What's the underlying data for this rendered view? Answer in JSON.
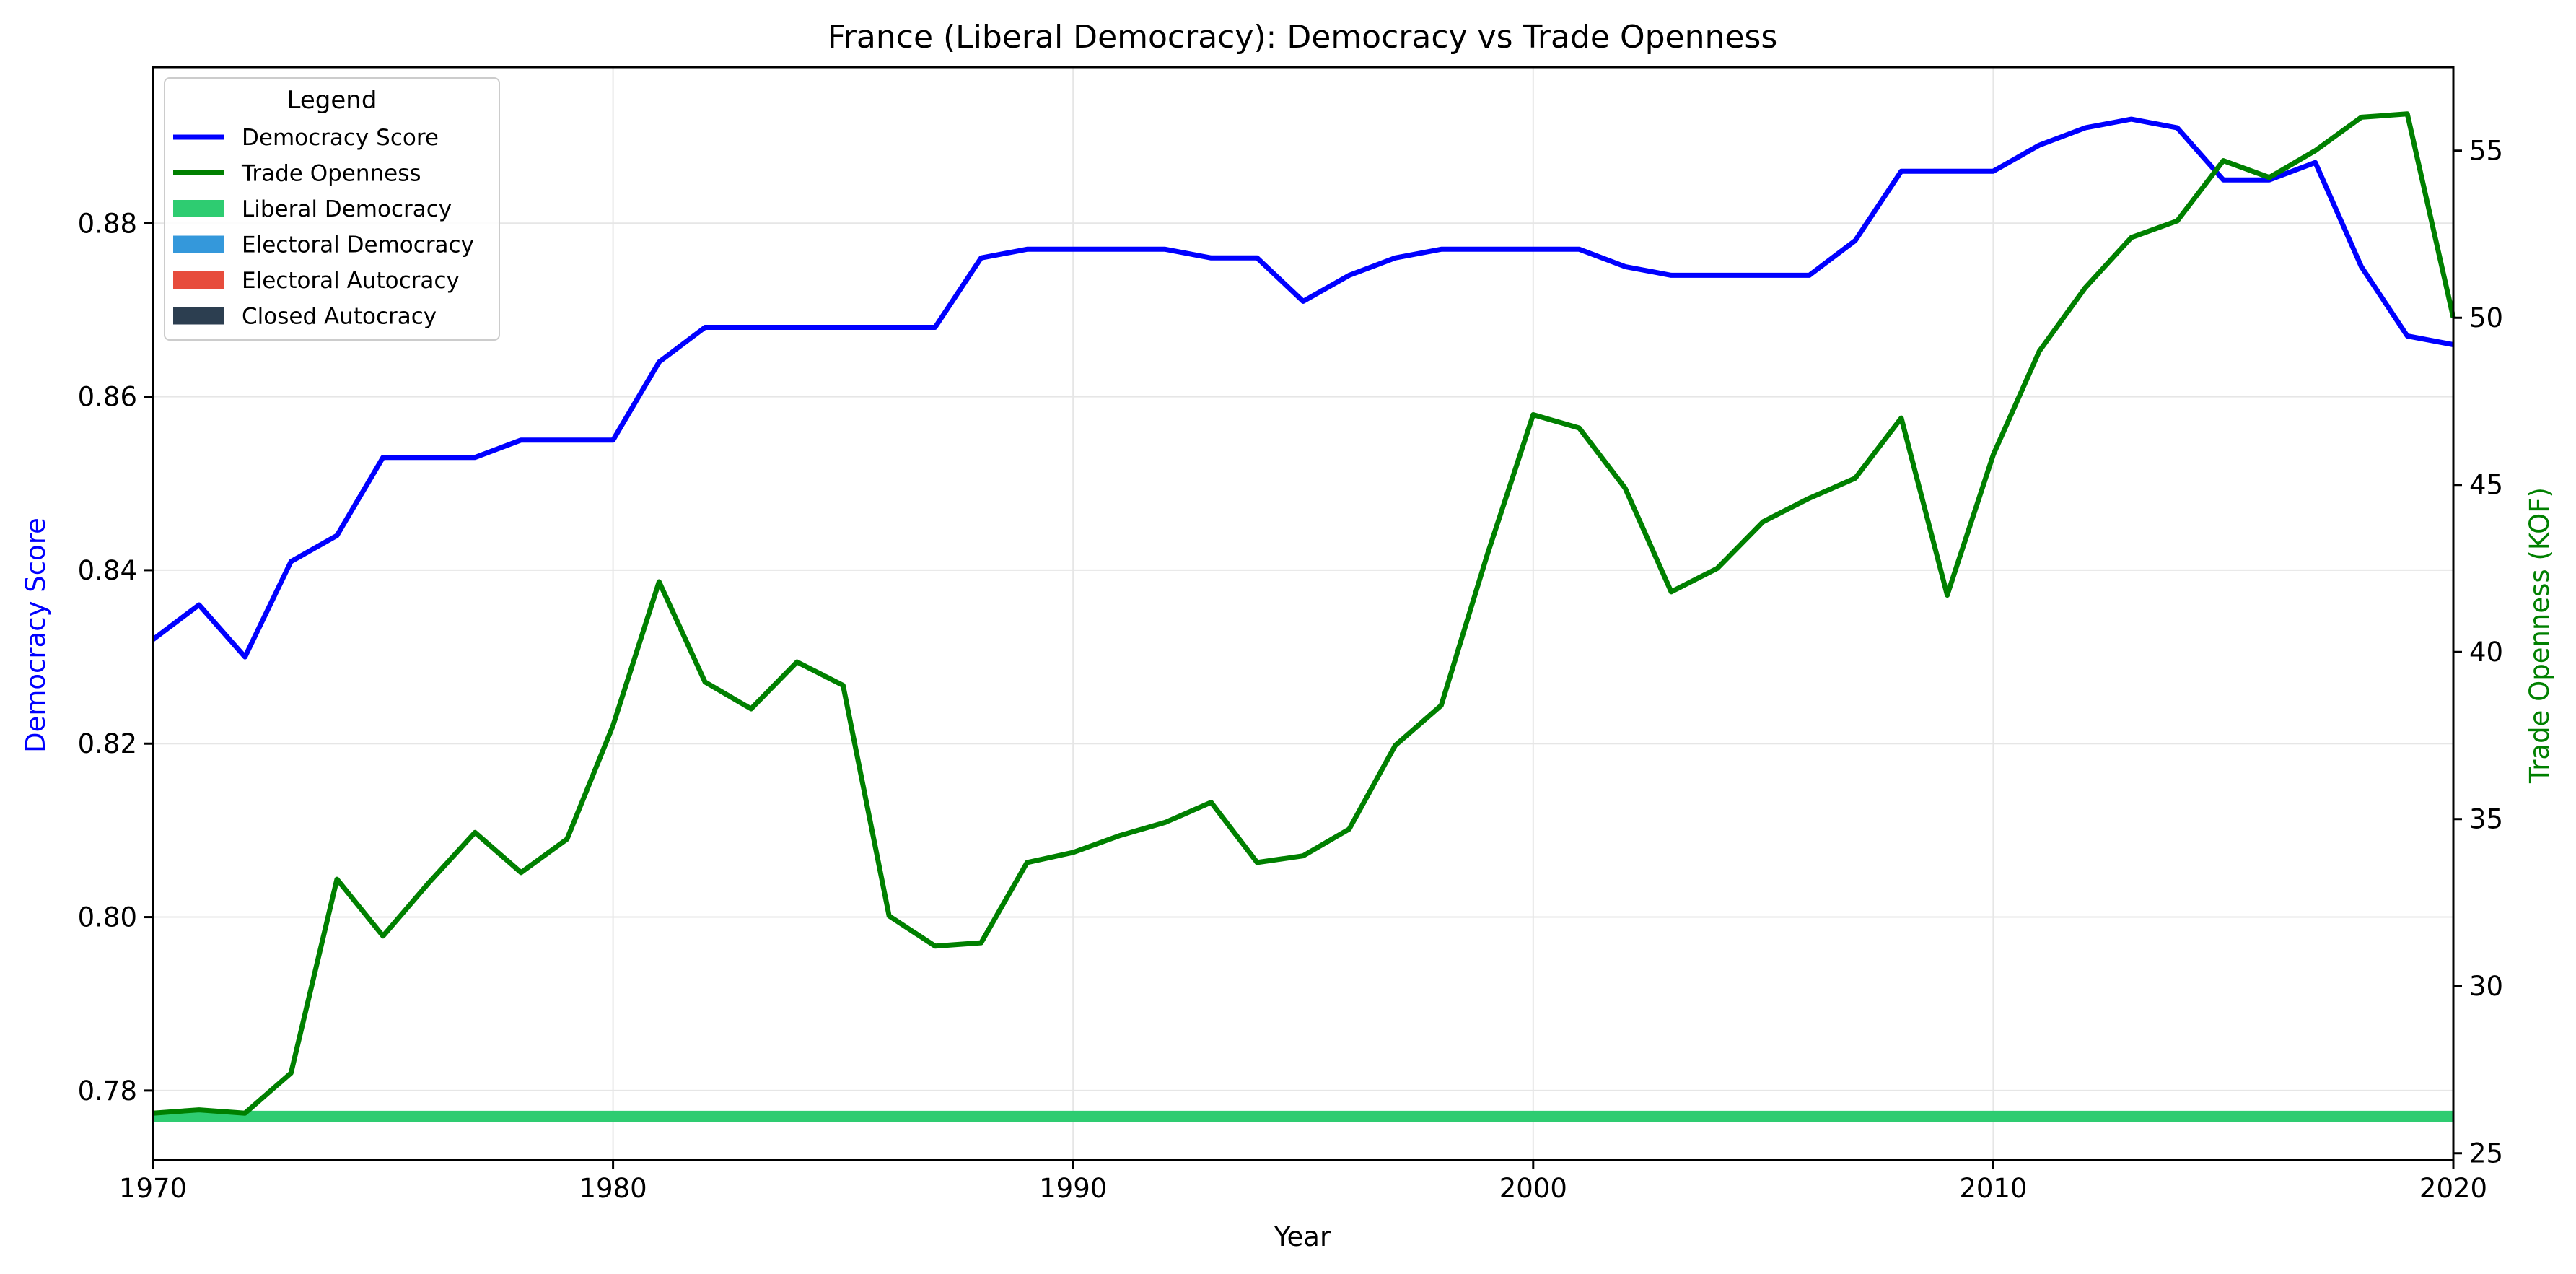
{
  "chart_data": {
    "type": "line",
    "title": "France (Liberal Democracy): Democracy vs Trade Openness",
    "xlabel": "Year",
    "ylabel_left": "Democracy Score",
    "ylabel_right": "Trade Openness (KOF)",
    "xlim": [
      1970,
      2020
    ],
    "ylim_left": [
      0.772,
      0.898
    ],
    "ylim_right": [
      24.8,
      57.5
    ],
    "xticks": [
      1970,
      1980,
      1990,
      2000,
      2010,
      2020
    ],
    "yticks_left": [
      "0.78",
      "0.80",
      "0.82",
      "0.84",
      "0.86",
      "0.88"
    ],
    "yticks_right": [
      "25",
      "30",
      "35",
      "40",
      "45",
      "50",
      "55"
    ],
    "grid": true,
    "legend": {
      "title": "Legend",
      "position": "top-left",
      "entries": [
        {
          "label": "Democracy Score",
          "kind": "line",
          "color": "#0000ff"
        },
        {
          "label": "Trade Openness",
          "kind": "line",
          "color": "#008000"
        },
        {
          "label": "Liberal Democracy",
          "kind": "patch",
          "color": "#2ecc71"
        },
        {
          "label": "Electoral Democracy",
          "kind": "patch",
          "color": "#3498db"
        },
        {
          "label": "Electoral Autocracy",
          "kind": "patch",
          "color": "#e74c3c"
        },
        {
          "label": "Closed Autocracy",
          "kind": "patch",
          "color": "#2c3e50"
        }
      ]
    },
    "regime_band": {
      "label": "Liberal Democracy",
      "color": "#2ecc71",
      "from": 1970,
      "to": 2020
    },
    "x": [
      1970,
      1971,
      1972,
      1973,
      1974,
      1975,
      1976,
      1977,
      1978,
      1979,
      1980,
      1981,
      1982,
      1983,
      1984,
      1985,
      1986,
      1987,
      1988,
      1989,
      1990,
      1991,
      1992,
      1993,
      1994,
      1995,
      1996,
      1997,
      1998,
      1999,
      2000,
      2001,
      2002,
      2003,
      2004,
      2005,
      2006,
      2007,
      2008,
      2009,
      2010,
      2011,
      2012,
      2013,
      2014,
      2015,
      2016,
      2017,
      2018,
      2019,
      2020
    ],
    "series": [
      {
        "name": "Democracy Score",
        "axis": "left",
        "color": "#0000ff",
        "values": [
          0.832,
          0.836,
          0.83,
          0.841,
          0.844,
          0.853,
          0.853,
          0.853,
          0.855,
          0.855,
          0.855,
          0.864,
          0.868,
          0.868,
          0.868,
          0.868,
          0.868,
          0.868,
          0.876,
          0.877,
          0.877,
          0.877,
          0.877,
          0.876,
          0.876,
          0.871,
          0.874,
          0.876,
          0.877,
          0.877,
          0.877,
          0.877,
          0.875,
          0.874,
          0.874,
          0.874,
          0.874,
          0.878,
          0.886,
          0.886,
          0.886,
          0.889,
          0.891,
          0.892,
          0.891,
          0.885,
          0.885,
          0.887,
          0.875,
          0.867,
          0.866
        ]
      },
      {
        "name": "Trade Openness",
        "axis": "right",
        "color": "#008000",
        "values": [
          26.2,
          26.3,
          26.2,
          27.4,
          33.2,
          31.5,
          33.1,
          34.6,
          33.4,
          34.4,
          37.8,
          42.1,
          39.1,
          38.3,
          39.7,
          39.0,
          32.1,
          31.2,
          31.3,
          33.7,
          34.0,
          34.5,
          34.9,
          35.5,
          33.7,
          33.9,
          34.7,
          37.2,
          38.4,
          42.9,
          47.1,
          46.7,
          44.9,
          41.8,
          42.5,
          43.9,
          44.6,
          45.2,
          47.0,
          41.7,
          45.9,
          49.0,
          50.9,
          52.4,
          52.9,
          54.7,
          54.2,
          55.0,
          56.0,
          56.1,
          50.0
        ]
      }
    ]
  }
}
